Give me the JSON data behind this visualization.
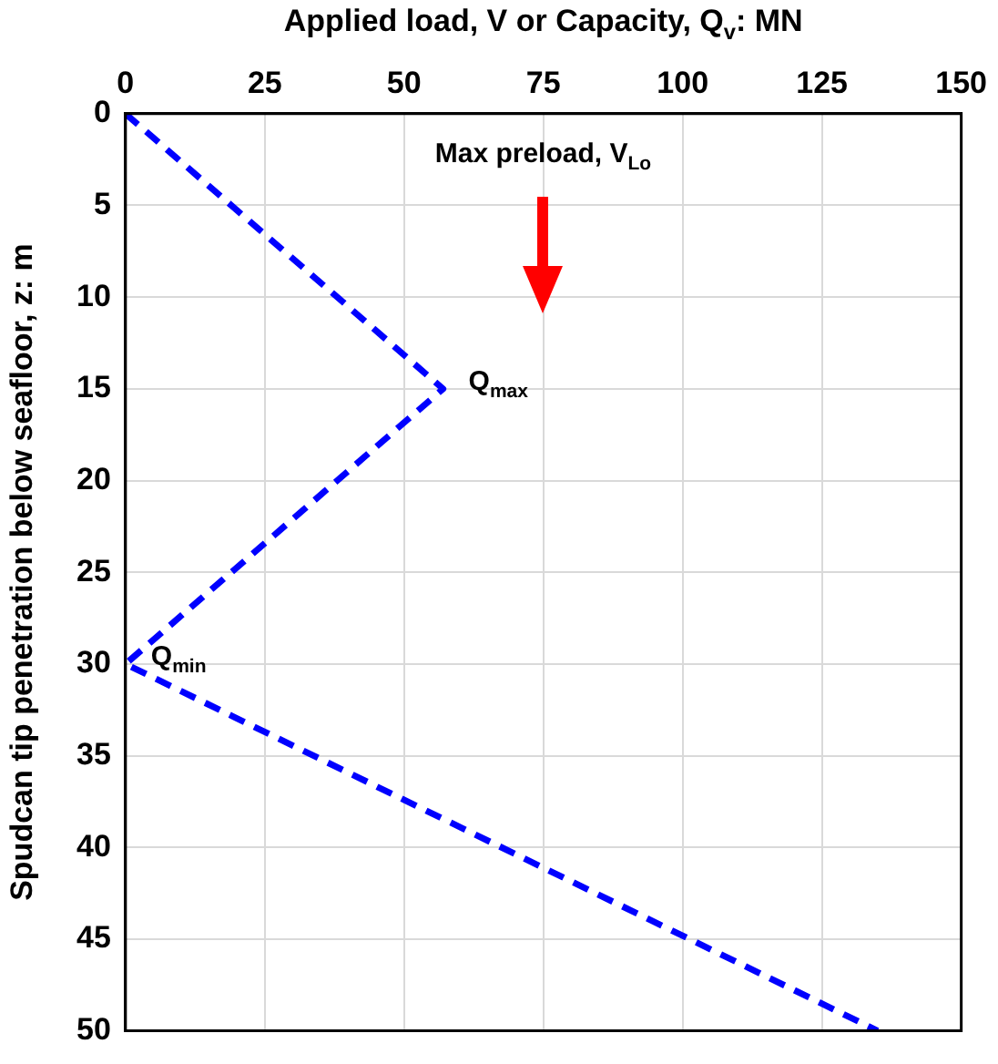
{
  "chart_data": {
    "type": "line",
    "xlabel": "Applied load, V or Capacity, Q$_{v}$: MN",
    "ylabel": "Spudcan tip penetration below seafloor, z: m",
    "series": [
      {
        "color": "#0000ff",
        "x": [
          0,
          57,
          0,
          135
        ],
        "values": [
          0,
          15,
          30,
          50
        ]
      }
    ],
    "xlim": [
      0,
      150
    ],
    "xticks": [
      0,
      25,
      50,
      75,
      100,
      125,
      150
    ],
    "ylim": [
      50,
      0
    ],
    "yticks": [
      0,
      5,
      10,
      15,
      20,
      25,
      30,
      35,
      40,
      45,
      50
    ],
    "grid": true,
    "legend": false,
    "marker": "none",
    "line_style": "dashed",
    "annotations": [
      "Max preload, V$_{Lo}$",
      {
        "text": "Q$_{max}$",
        "x": 57,
        "y": 15
      },
      {
        "text": "Q$_{min}$",
        "x": 0,
        "y": 30
      }
    ]
  }
}
